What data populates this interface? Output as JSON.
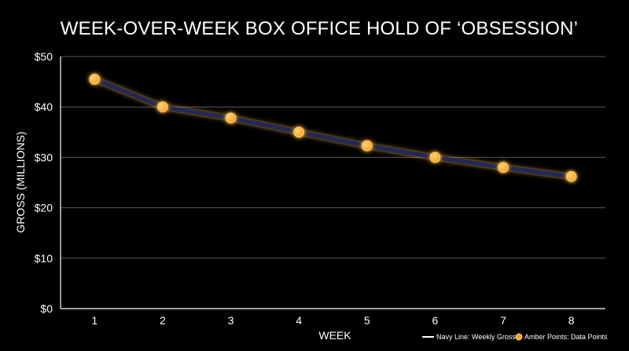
{
  "chart_data": {
    "type": "line",
    "title": "WEEK-OVER-WEEK BOX OFFICE HOLD OF ‘OBSESSION’",
    "xlabel": "WEEK",
    "ylabel": "GROSS (MILLIONS)",
    "x": [
      1,
      2,
      3,
      4,
      5,
      6,
      7,
      8
    ],
    "x_tick_labels": [
      "1",
      "2",
      "3",
      "4",
      "5",
      "6",
      "7",
      "8"
    ],
    "series": [
      {
        "name": "Weekly Gross",
        "values": [
          45.5,
          40.0,
          37.8,
          35.0,
          32.3,
          30.0,
          28.0,
          26.2
        ]
      }
    ],
    "ylim": [
      0,
      50
    ],
    "y_ticks": [
      0,
      10,
      20,
      30,
      40,
      50
    ],
    "y_tick_labels": [
      "$0",
      "$10",
      "$20",
      "$30",
      "$40",
      "$50"
    ],
    "grid": true,
    "legend_position": "bottom-right",
    "legend": {
      "line_text": "Navy Line: Weekly Gross,",
      "point_text": "Amber Points: Data Points"
    },
    "colors": {
      "background": "#000000",
      "line": "#22285c",
      "line_glow": "#d9a13a",
      "point": "#f5a623",
      "point_highlight": "#ffd27a",
      "grid": "#5a5a5a"
    }
  }
}
